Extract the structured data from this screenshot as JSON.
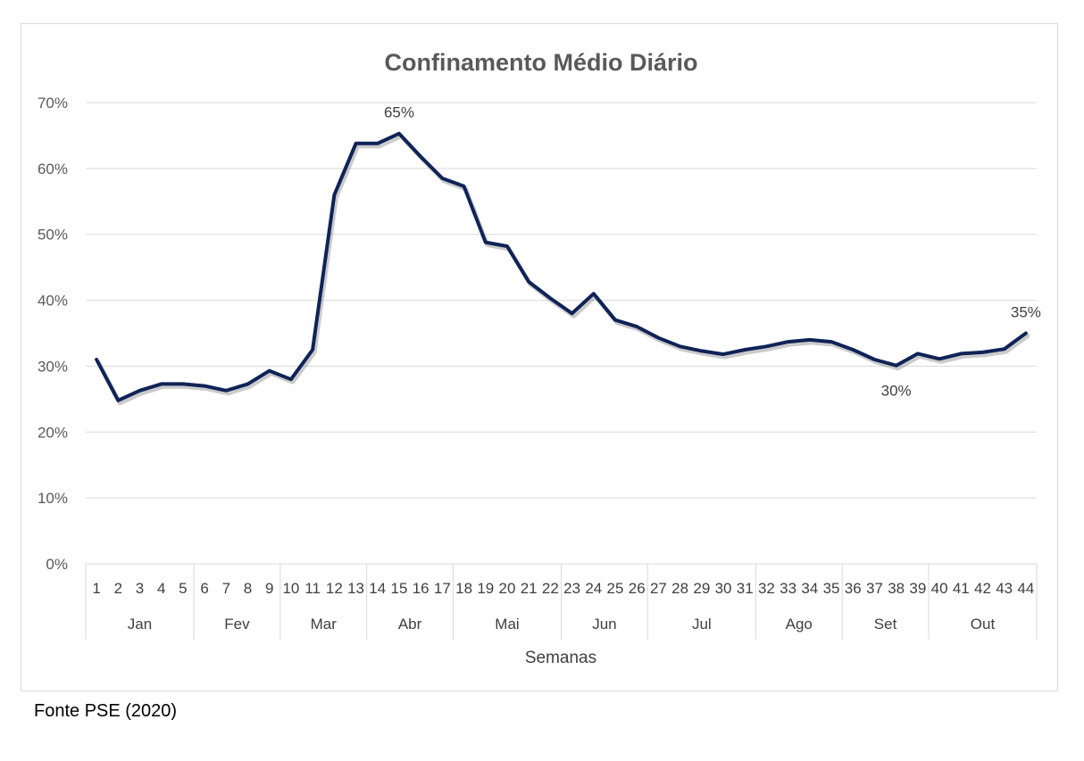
{
  "chart_data": {
    "type": "line",
    "title": "Confinamento Médio Diário",
    "xlabel": "Semanas",
    "ylabel": "",
    "ylim": [
      0,
      70
    ],
    "y_ticks": [
      "0%",
      "10%",
      "20%",
      "30%",
      "40%",
      "50%",
      "60%",
      "70%"
    ],
    "y_tick_values": [
      0,
      10,
      20,
      30,
      40,
      50,
      60,
      70
    ],
    "grid": true,
    "legend": "none",
    "x": [
      1,
      2,
      3,
      4,
      5,
      6,
      7,
      8,
      9,
      10,
      11,
      12,
      13,
      14,
      15,
      16,
      17,
      18,
      19,
      20,
      21,
      22,
      23,
      24,
      25,
      26,
      27,
      28,
      29,
      30,
      31,
      32,
      33,
      34,
      35,
      36,
      37,
      38,
      39,
      40,
      41,
      42,
      43,
      44
    ],
    "x_tick_labels": [
      "1",
      "2",
      "3",
      "4",
      "5",
      "6",
      "7",
      "8",
      "9",
      "10",
      "11",
      "12",
      "13",
      "14",
      "15",
      "16",
      "17",
      "18",
      "19",
      "20",
      "21",
      "22",
      "23",
      "24",
      "25",
      "26",
      "27",
      "28",
      "29",
      "30",
      "31",
      "32",
      "33",
      "34",
      "35",
      "36",
      "37",
      "38",
      "39",
      "40",
      "41",
      "42",
      "43",
      "44"
    ],
    "months": [
      {
        "label": "Jan",
        "start": 1,
        "end": 5
      },
      {
        "label": "Fev",
        "start": 6,
        "end": 9
      },
      {
        "label": "Mar",
        "start": 10,
        "end": 13
      },
      {
        "label": "Abr",
        "start": 14,
        "end": 17
      },
      {
        "label": "Mai",
        "start": 18,
        "end": 22
      },
      {
        "label": "Jun",
        "start": 23,
        "end": 26
      },
      {
        "label": "Jul",
        "start": 27,
        "end": 31
      },
      {
        "label": "Ago",
        "start": 32,
        "end": 35
      },
      {
        "label": "Set",
        "start": 36,
        "end": 39
      },
      {
        "label": "Out",
        "start": 40,
        "end": 44
      }
    ],
    "series": [
      {
        "color": "#0f2357",
        "values": [
          31,
          24.8,
          26.3,
          27.3,
          27.3,
          27.0,
          26.3,
          27.3,
          29.3,
          28.0,
          32.5,
          56,
          63.8,
          63.8,
          65.3,
          61.8,
          58.5,
          57.3,
          48.8,
          48.2,
          42.8,
          40.3,
          38.0,
          41.0,
          37.0,
          36.0,
          34.3,
          33.0,
          32.3,
          31.8,
          32.5,
          33.0,
          33.7,
          34.0,
          33.7,
          32.5,
          31.0,
          30.1,
          31.9,
          31.1,
          31.9,
          32.1,
          32.6,
          35.0
        ]
      }
    ],
    "annotations": [
      {
        "text": "65%",
        "x": 15,
        "y": 65.3,
        "position": "above"
      },
      {
        "text": "30%",
        "x": 38,
        "y": 30.1,
        "position": "below"
      },
      {
        "text": "35%",
        "x": 44,
        "y": 35.0,
        "position": "above"
      }
    ]
  },
  "source": "Fonte PSE (2020)"
}
